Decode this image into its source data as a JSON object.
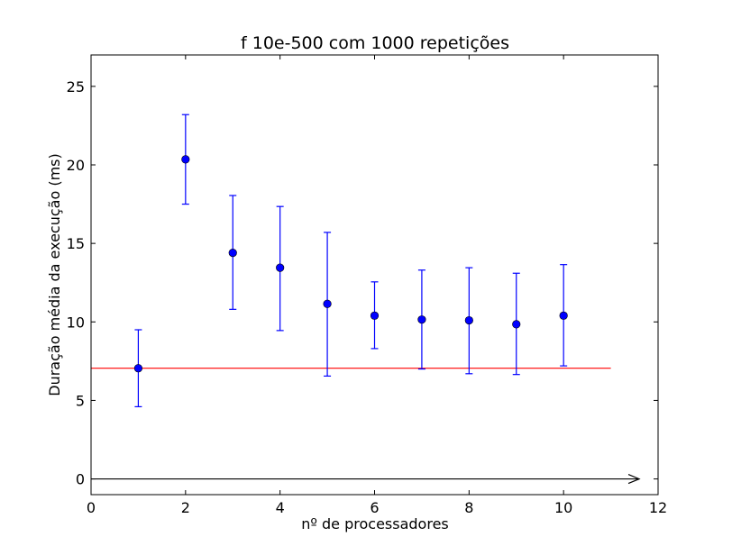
{
  "chart_data": {
    "type": "scatter",
    "title": "f 10e-500 com 1000 repetições",
    "xlabel": "nº de processadores",
    "ylabel": "Duração média da execução (ms)",
    "xlim": [
      0,
      12
    ],
    "ylim": [
      -1,
      27
    ],
    "xticks": [
      "0",
      "2",
      "4",
      "6",
      "8",
      "10",
      "12"
    ],
    "yticks": [
      "0",
      "5",
      "10",
      "15",
      "20",
      "25"
    ],
    "grid": false,
    "legend": "none",
    "series": [
      {
        "marker": "circle",
        "color": "#0000ff",
        "x": [
          1,
          2,
          3,
          4,
          5,
          6,
          7,
          8,
          9,
          10
        ],
        "y": [
          7.05,
          20.35,
          14.4,
          13.45,
          11.15,
          10.4,
          10.15,
          10.1,
          9.85,
          10.4
        ],
        "err_low": [
          4.6,
          17.5,
          10.8,
          9.45,
          6.55,
          8.3,
          7.0,
          6.7,
          6.65,
          7.2
        ],
        "err_high": [
          9.5,
          23.2,
          18.05,
          17.35,
          15.7,
          12.55,
          13.3,
          13.45,
          13.1,
          13.65
        ]
      }
    ],
    "reference_line": {
      "y": 7.05,
      "x_from": 0,
      "x_to": 11,
      "color": "#ff0000"
    },
    "axis_arrow": {
      "y": 0,
      "x_from": 0,
      "x_to": 11.6,
      "color": "#000000"
    }
  }
}
